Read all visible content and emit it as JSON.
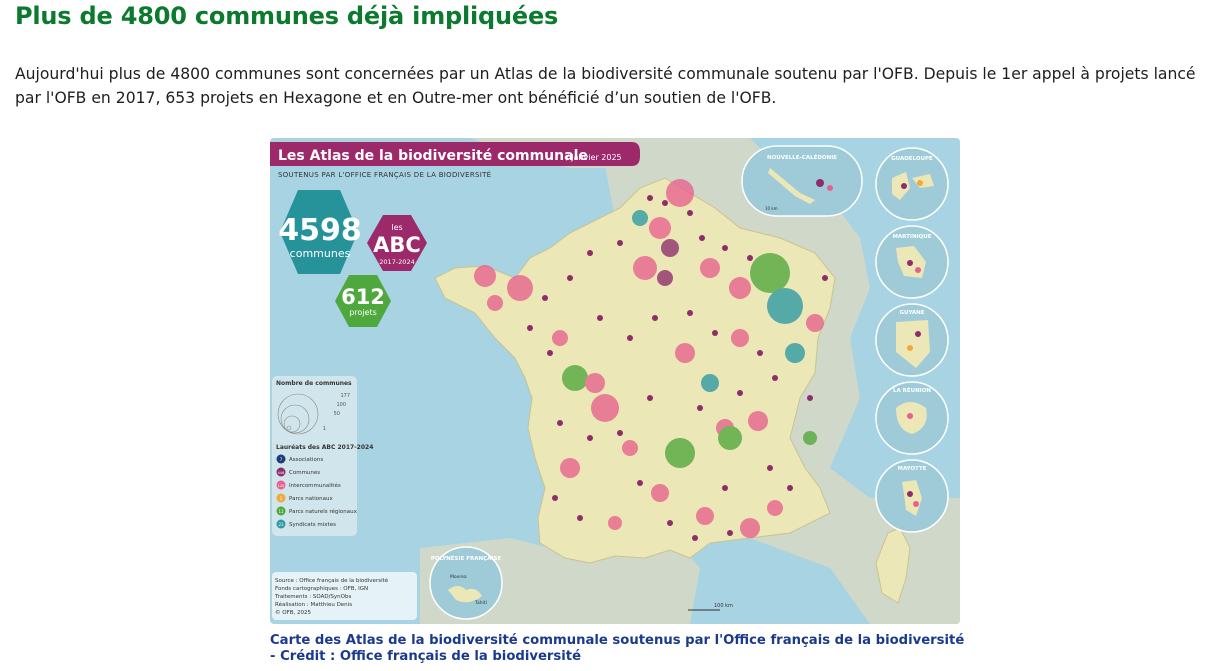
{
  "article": {
    "heading": "Plus de 4800 communes déjà impliquées",
    "paragraph": "Aujourd'hui plus de 4800 communes sont concernées par un Atlas de la biodiversité communale soutenu par l'OFB. Depuis le 1er appel à projets lancé par l'OFB en 2017, 653 projets en Hexagone et en Outre-mer ont bénéficié d’un soutien de l'OFB.",
    "caption": "Carte des Atlas de la biodiversité communale soutenus par l'Office français de la biodiversité - Crédit : Office français de la biodiversité"
  },
  "map": {
    "title": "Les Atlas de la biodiversité communale",
    "date": "/ Janvier 2025",
    "subtitle": "SOUTENUS PAR L'OFFICE FRANÇAIS DE LA BIODIVERSITÉ",
    "stat_communes_value": "4598",
    "stat_communes_label": "communes",
    "stat_abc_small": "les",
    "stat_abc_big": "ABC",
    "stat_abc_years": "2017-2024",
    "stat_projets_value": "612",
    "stat_projets_label": "projets",
    "legend": {
      "size_title": "Nombre de communes",
      "size_values": [
        "177",
        "100",
        "50",
        "1"
      ],
      "laureats_title": "Lauréats des ABC 2017-2024",
      "items": [
        {
          "count": "7",
          "label": "Associations",
          "color": "#1f3c7a"
        },
        {
          "count": "446",
          "label": "Communes",
          "color": "#8e2d6b"
        },
        {
          "count": "120",
          "label": "Intercommunalités",
          "color": "#e8608e"
        },
        {
          "count": "5",
          "label": "Parcs nationaux",
          "color": "#f2a93b"
        },
        {
          "count": "11",
          "label": "Parcs naturels régionaux",
          "color": "#4fa83d"
        },
        {
          "count": "23",
          "label": "Syndicats mixtes",
          "color": "#2b9aa3"
        }
      ]
    },
    "sources": [
      "Source : Office français de la biodiversité",
      "Fonds cartographiques : OFB, IGN",
      "Traitements : SOAD/SynObs",
      "Réalisation : Matthieu Denis",
      "© OFB, 2025"
    ],
    "insets": {
      "nouvelle_caledonie": "NOUVELLE-CALÉDONIE",
      "guadeloupe": "GUADELOUPE",
      "martinique": "MARTINIQUE",
      "guyane": "GUYANE",
      "reunion": "LA RÉUNION",
      "mayotte": "MAYOTTE",
      "polynesie": "POLYNÉSIE FRANÇAISE",
      "polynesie_place1": "Moorea",
      "polynesie_place2": "Tahiti"
    },
    "scale_main": "100 km",
    "scale_inset": "10 km",
    "colors": {
      "sea": "#a7d3e3",
      "land": "#ece7b6",
      "neighbors": "#cfd8c9",
      "title_band": "#9c2a6b",
      "hex_communes": "#26939b",
      "hex_abc": "#9c2a6b",
      "hex_projets": "#4fa83d"
    }
  }
}
